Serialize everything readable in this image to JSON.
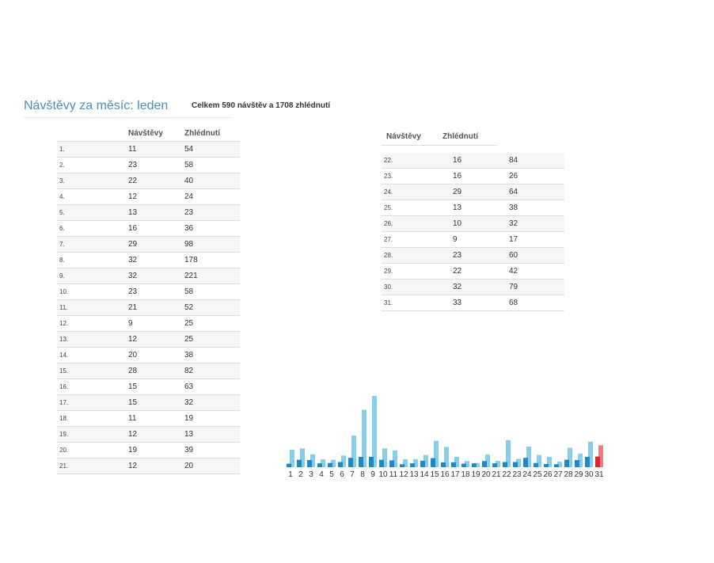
{
  "header": {
    "title": "Návštěvy za měsíc: leden",
    "summary": "Celkem 590 návštěv a 1708 zhlédnutí"
  },
  "table": {
    "col_visits": "Návštěvy",
    "col_views": "Zhlédnutí"
  },
  "rows_left": [
    {
      "day": "1.",
      "visits": "11",
      "views": "54"
    },
    {
      "day": "2.",
      "visits": "23",
      "views": "58"
    },
    {
      "day": "3.",
      "visits": "22",
      "views": "40"
    },
    {
      "day": "4.",
      "visits": "12",
      "views": "24"
    },
    {
      "day": "5.",
      "visits": "13",
      "views": "23"
    },
    {
      "day": "6.",
      "visits": "16",
      "views": "36"
    },
    {
      "day": "7.",
      "visits": "29",
      "views": "98"
    },
    {
      "day": "8.",
      "visits": "32",
      "views": "178"
    },
    {
      "day": "9.",
      "visits": "32",
      "views": "221"
    },
    {
      "day": "10.",
      "visits": "23",
      "views": "58"
    },
    {
      "day": "11.",
      "visits": "21",
      "views": "52"
    },
    {
      "day": "12.",
      "visits": "9",
      "views": "25"
    },
    {
      "day": "13.",
      "visits": "12",
      "views": "25"
    },
    {
      "day": "14.",
      "visits": "20",
      "views": "38"
    },
    {
      "day": "15.",
      "visits": "28",
      "views": "82"
    },
    {
      "day": "16.",
      "visits": "15",
      "views": "63"
    },
    {
      "day": "17.",
      "visits": "15",
      "views": "32"
    },
    {
      "day": "18.",
      "visits": "11",
      "views": "19"
    },
    {
      "day": "19.",
      "visits": "12",
      "views": "13"
    },
    {
      "day": "20.",
      "visits": "19",
      "views": "39"
    },
    {
      "day": "21.",
      "visits": "12",
      "views": "20"
    }
  ],
  "rows_right": [
    {
      "day": "22.",
      "visits": "16",
      "views": "84"
    },
    {
      "day": "23.",
      "visits": "16",
      "views": "26"
    },
    {
      "day": "24.",
      "visits": "29",
      "views": "64"
    },
    {
      "day": "25.",
      "visits": "13",
      "views": "38"
    },
    {
      "day": "26.",
      "visits": "10",
      "views": "32"
    },
    {
      "day": "27.",
      "visits": "9",
      "views": "17"
    },
    {
      "day": "28.",
      "visits": "23",
      "views": "60"
    },
    {
      "day": "29.",
      "visits": "22",
      "views": "42"
    },
    {
      "day": "30.",
      "visits": "32",
      "views": "79"
    },
    {
      "day": "31.",
      "visits": "33",
      "views": "68"
    }
  ],
  "colors": {
    "title": "#4a8ec9",
    "views_bar": "#87ceeb",
    "visits_bar": "#1f88c6",
    "highlight_views": "#e87e80",
    "highlight_visits": "#d9262b"
  },
  "chart_data": {
    "type": "bar",
    "categories": [
      "1",
      "2",
      "3",
      "4",
      "5",
      "6",
      "7",
      "8",
      "9",
      "10",
      "11",
      "12",
      "13",
      "14",
      "15",
      "16",
      "17",
      "18",
      "19",
      "20",
      "21",
      "22",
      "23",
      "24",
      "25",
      "26",
      "27",
      "28",
      "29",
      "30",
      "31"
    ],
    "series": [
      {
        "values": [
          54,
          58,
          40,
          24,
          23,
          36,
          98,
          178,
          221,
          58,
          52,
          25,
          25,
          38,
          82,
          63,
          32,
          19,
          13,
          39,
          20,
          84,
          26,
          64,
          38,
          32,
          17,
          60,
          42,
          79,
          68
        ]
      },
      {
        "values": [
          11,
          23,
          22,
          12,
          13,
          16,
          29,
          32,
          32,
          23,
          21,
          9,
          12,
          20,
          28,
          15,
          15,
          11,
          12,
          19,
          12,
          16,
          16,
          29,
          13,
          10,
          9,
          23,
          22,
          32,
          33
        ]
      }
    ],
    "highlight_category": "31",
    "ylim": [
      0,
      221
    ],
    "grid": false,
    "legend": "none"
  }
}
